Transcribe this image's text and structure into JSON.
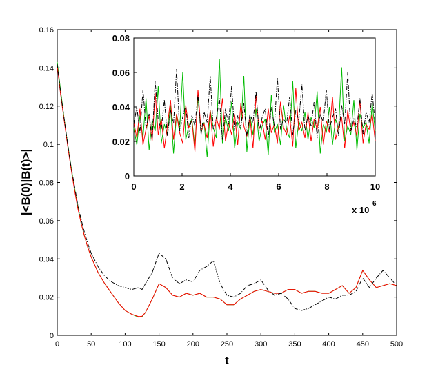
{
  "chart_data": [
    {
      "type": "line",
      "title": "",
      "xlabel": "t",
      "ylabel": "|<B(0)|B(t)>|",
      "xlim": [
        0,
        500
      ],
      "ylim": [
        0,
        0.16
      ],
      "xticks": [
        "0",
        "50",
        "100",
        "150",
        "200",
        "250",
        "300",
        "350",
        "400",
        "450",
        "500"
      ],
      "yticks": [
        "0",
        "0.02",
        "0.04",
        "0.06",
        "0.08",
        "0.1",
        "0.12",
        "0.14",
        "0.16"
      ],
      "grid": false,
      "legend": "none",
      "x": [
        0,
        5,
        10,
        15,
        20,
        25,
        30,
        35,
        40,
        45,
        50,
        60,
        70,
        80,
        90,
        100,
        110,
        120,
        125,
        130,
        140,
        150,
        160,
        170,
        180,
        190,
        200,
        210,
        220,
        230,
        240,
        250,
        260,
        270,
        280,
        290,
        300,
        310,
        320,
        330,
        340,
        350,
        360,
        370,
        380,
        390,
        400,
        410,
        420,
        430,
        440,
        450,
        460,
        470,
        480,
        490,
        500
      ],
      "series": [
        {
          "color": "#00bb00",
          "style": "solid",
          "values": [
            0.143,
            0.128,
            0.114,
            0.101,
            0.089,
            0.078,
            0.068,
            0.059,
            0.052,
            0.046,
            0.041,
            0.033,
            0.027,
            0.022,
            0.017,
            0.013,
            0.011,
            0.0095,
            0.0098,
            0.012,
            0.019,
            0.027,
            0.025,
            0.021,
            0.02,
            0.022,
            0.021,
            0.022,
            0.02,
            0.02,
            0.019,
            0.016,
            0.016,
            0.019,
            0.021,
            0.023,
            0.024,
            0.023,
            0.022,
            0.022,
            0.024,
            0.024,
            0.022,
            0.023,
            0.023,
            0.022,
            0.022,
            0.024,
            0.026,
            0.022,
            0.025,
            0.034,
            0.029,
            0.025,
            0.026,
            0.027,
            0.026
          ]
        },
        {
          "color": "#ff0000",
          "style": "solid",
          "values": [
            0.141,
            0.126,
            0.113,
            0.1,
            0.088,
            0.077,
            0.067,
            0.059,
            0.052,
            0.046,
            0.041,
            0.033,
            0.027,
            0.022,
            0.017,
            0.013,
            0.011,
            0.0098,
            0.01,
            0.012,
            0.019,
            0.027,
            0.025,
            0.021,
            0.02,
            0.022,
            0.021,
            0.022,
            0.02,
            0.02,
            0.019,
            0.016,
            0.016,
            0.019,
            0.021,
            0.023,
            0.024,
            0.023,
            0.022,
            0.022,
            0.024,
            0.024,
            0.022,
            0.023,
            0.023,
            0.022,
            0.022,
            0.024,
            0.026,
            0.022,
            0.025,
            0.034,
            0.029,
            0.025,
            0.026,
            0.027,
            0.026
          ]
        },
        {
          "color": "#000000",
          "style": "dash-dot",
          "values": [
            0.142,
            0.127,
            0.114,
            0.101,
            0.089,
            0.079,
            0.069,
            0.061,
            0.054,
            0.048,
            0.043,
            0.036,
            0.031,
            0.028,
            0.026,
            0.025,
            0.024,
            0.025,
            0.024,
            0.027,
            0.033,
            0.043,
            0.04,
            0.03,
            0.027,
            0.029,
            0.028,
            0.034,
            0.036,
            0.039,
            0.027,
            0.021,
            0.02,
            0.022,
            0.026,
            0.027,
            0.029,
            0.024,
            0.021,
            0.022,
            0.019,
            0.014,
            0.013,
            0.014,
            0.016,
            0.018,
            0.02,
            0.019,
            0.021,
            0.021,
            0.023,
            0.03,
            0.025,
            0.03,
            0.034,
            0.03,
            0.026
          ]
        }
      ]
    },
    {
      "type": "line",
      "title": "",
      "xlabel": "",
      "ylabel": "",
      "xlim": [
        0,
        10000000
      ],
      "ylim": [
        0,
        0.08
      ],
      "xticks": [
        "0",
        "2",
        "4",
        "6",
        "8",
        "10"
      ],
      "yticks": [
        "0",
        "0.02",
        "0.04",
        "0.06",
        "0.08"
      ],
      "x_multiplier_text": "x 10",
      "x_multiplier_exponent": "6",
      "grid": false,
      "legend": "none",
      "series": [
        {
          "color": "#00bb00",
          "style": "solid",
          "values": [
            0.028,
            0.018,
            0.035,
            0.022,
            0.045,
            0.015,
            0.032,
            0.026,
            0.052,
            0.019,
            0.03,
            0.024,
            0.041,
            0.013,
            0.036,
            0.027,
            0.06,
            0.021,
            0.029,
            0.033,
            0.017,
            0.046,
            0.025,
            0.031,
            0.011,
            0.038,
            0.028,
            0.022,
            0.068,
            0.019,
            0.034,
            0.026,
            0.043,
            0.016,
            0.031,
            0.027,
            0.058,
            0.014,
            0.035,
            0.024,
            0.039,
            0.02,
            0.029,
            0.033,
            0.012,
            0.047,
            0.025,
            0.03,
            0.018,
            0.041,
            0.027,
            0.022,
            0.055,
            0.016,
            0.032,
            0.026,
            0.037,
            0.021,
            0.034,
            0.028,
            0.049,
            0.013,
            0.03,
            0.025,
            0.04,
            0.018,
            0.033,
            0.027,
            0.063,
            0.02,
            0.029,
            0.024,
            0.044,
            0.015,
            0.036,
            0.028,
            0.031,
            0.019,
            0.042,
            0.026
          ]
        },
        {
          "color": "#ff0000",
          "style": "solid",
          "values": [
            0.031,
            0.022,
            0.039,
            0.018,
            0.027,
            0.035,
            0.02,
            0.048,
            0.024,
            0.033,
            0.016,
            0.029,
            0.044,
            0.021,
            0.036,
            0.025,
            0.019,
            0.041,
            0.028,
            0.032,
            0.014,
            0.05,
            0.026,
            0.03,
            0.022,
            0.038,
            0.017,
            0.034,
            0.027,
            0.045,
            0.02,
            0.031,
            0.024,
            0.036,
            0.018,
            0.042,
            0.029,
            0.023,
            0.034,
            0.016,
            0.047,
            0.027,
            0.032,
            0.021,
            0.039,
            0.025,
            0.03,
            0.019,
            0.043,
            0.028,
            0.024,
            0.035,
            0.017,
            0.051,
            0.026,
            0.031,
            0.022,
            0.037,
            0.02,
            0.033,
            0.027,
            0.04,
            0.018,
            0.032,
            0.025,
            0.046,
            0.021,
            0.029,
            0.034,
            0.016,
            0.038,
            0.026,
            0.031,
            0.023,
            0.044,
            0.019,
            0.03,
            0.027,
            0.036,
            0.02
          ]
        },
        {
          "color": "#000000",
          "style": "dash-dot",
          "values": [
            0.03,
            0.04,
            0.025,
            0.05,
            0.028,
            0.036,
            0.021,
            0.055,
            0.032,
            0.027,
            0.044,
            0.023,
            0.038,
            0.03,
            0.062,
            0.026,
            0.034,
            0.041,
            0.022,
            0.035,
            0.029,
            0.047,
            0.024,
            0.037,
            0.031,
            0.058,
            0.027,
            0.033,
            0.045,
            0.021,
            0.039,
            0.03,
            0.052,
            0.026,
            0.035,
            0.028,
            0.042,
            0.023,
            0.036,
            0.031,
            0.049,
            0.025,
            0.034,
            0.039,
            0.022,
            0.04,
            0.029,
            0.057,
            0.027,
            0.033,
            0.03,
            0.046,
            0.024,
            0.038,
            0.032,
            0.053,
            0.026,
            0.035,
            0.029,
            0.043,
            0.022,
            0.036,
            0.031,
            0.05,
            0.027,
            0.034,
            0.039,
            0.023,
            0.041,
            0.03,
            0.06,
            0.026,
            0.033,
            0.028,
            0.045,
            0.024,
            0.037,
            0.031,
            0.048,
            0.03
          ]
        }
      ]
    }
  ]
}
